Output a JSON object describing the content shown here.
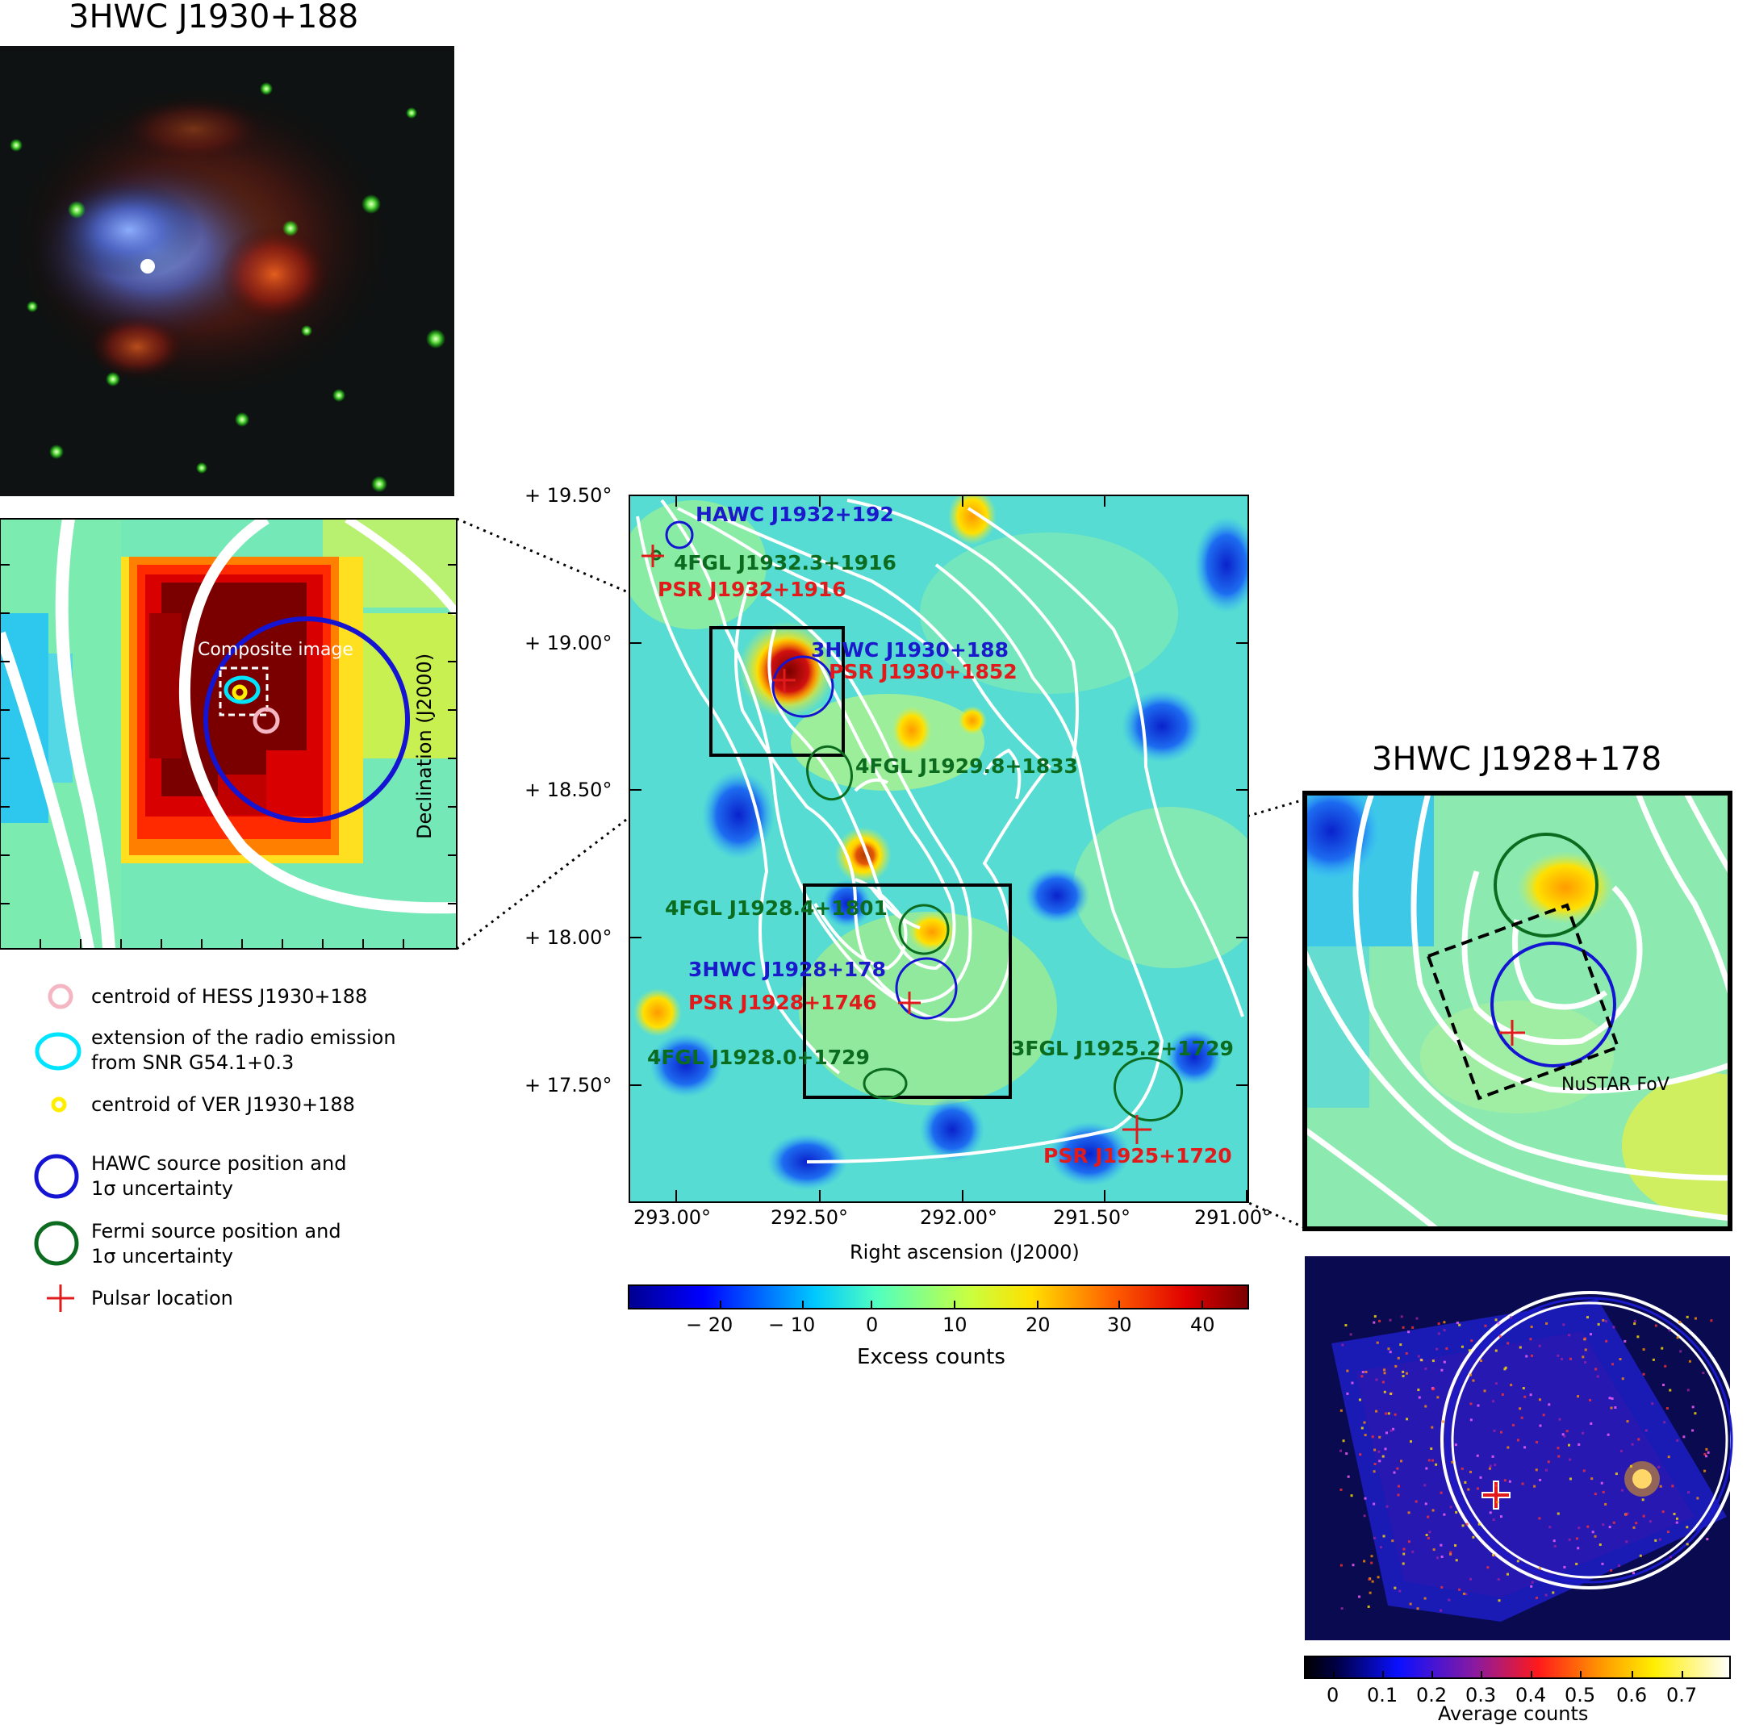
{
  "panels": {
    "top_left_title": "3HWC J1930+188",
    "right_title": "3HWC J1928+178",
    "zoom_label": "Composite image",
    "nustar_label": "NuSTAR FoV"
  },
  "main_map": {
    "sources": {
      "hawc_j1932": "HAWC J1932+192",
      "fgl_j1932": "4FGL J1932.3+1916",
      "psr_j1932": "PSR J1932+1916",
      "hwc_j1930": "3HWC J1930+188",
      "psr_j1930": "PSR J1930+1852",
      "fgl_j1929": "4FGL J1929.8+1833",
      "fgl_j1928_4": "4FGL J1928.4+1801",
      "hwc_j1928": "3HWC J1928+178",
      "psr_j1928": "PSR J1928+1746",
      "fgl_j1925": "3FGL J1925.2+1729",
      "fgl_j1928_0": "4FGL J1928.0+1729",
      "psr_j1925": "PSR J1925+1720"
    },
    "y_ticks": [
      "+ 19.50°",
      "+ 19.00°",
      "+ 18.50°",
      "+ 18.00°",
      "+ 17.50°"
    ],
    "x_ticks": [
      "293.00°",
      "292.50°",
      "292.00°",
      "291.50°",
      "291.00°"
    ],
    "xlabel": "Right ascension (J2000)",
    "ylabel": "Declination (J2000)"
  },
  "colorbar_main": {
    "ticks": [
      "− 20",
      "− 10",
      "0",
      "10",
      "20",
      "30",
      "40"
    ],
    "label": "Excess counts"
  },
  "colorbar_nustar": {
    "ticks": [
      "0",
      "0.1",
      "0.2",
      "0.3",
      "0.4",
      "0.5",
      "0.6",
      "0.7"
    ],
    "label": "Average counts"
  },
  "legend": {
    "items": [
      {
        "line1": "centroid of HESS J1930+188",
        "line2": "",
        "color": "#f4b6c2",
        "icon": "pink-circle-icon"
      },
      {
        "line1": "extension of the radio emission",
        "line2": "from SNR G54.1+0.3",
        "color": "#00e5ff",
        "icon": "cyan-ellipse-icon"
      },
      {
        "line1": "centroid of VER J1930+188",
        "line2": "",
        "color": "#ffee00",
        "icon": "yellow-circle-icon"
      },
      {
        "line1": "HAWC source position and",
        "line2": "1σ uncertainty",
        "color": "#1414d2",
        "icon": "blue-circle-icon"
      },
      {
        "line1": "Fermi source position and",
        "line2": "1σ uncertainty",
        "color": "#0b6b1f",
        "icon": "green-circle-icon"
      },
      {
        "line1": "Pulsar location",
        "line2": "",
        "color": "#e11b1b",
        "icon": "red-cross-icon"
      }
    ]
  }
}
